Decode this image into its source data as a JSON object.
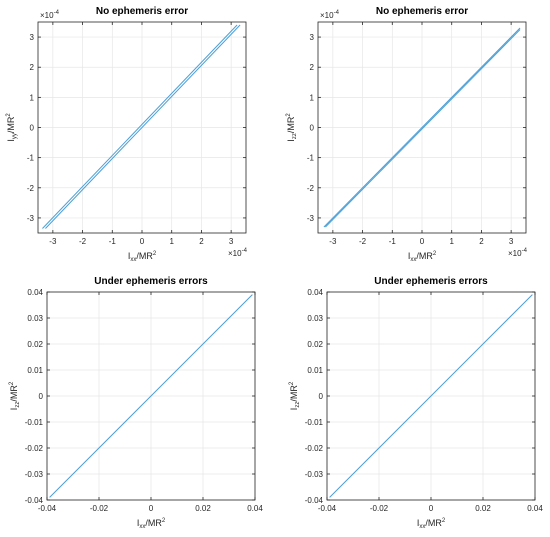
{
  "chart_data": [
    {
      "type": "line",
      "title": "No ephemeris error",
      "xlabel": {
        "base": "I",
        "sub": "xx",
        "mid": "/MR",
        "sup": "2"
      },
      "ylabel": {
        "base": "I",
        "sub": "yy",
        "mid": "/MR",
        "sup": "2"
      },
      "xlim": [
        -3.5,
        3.5
      ],
      "ylim": [
        -3.5,
        3.5
      ],
      "xticks": [
        -3,
        -2,
        -1,
        0,
        1,
        2,
        3
      ],
      "yticks": [
        -3,
        -2,
        -1,
        0,
        1,
        2,
        3
      ],
      "xtick_labels": [
        "-3",
        "-2",
        "-1",
        "0",
        "1",
        "2",
        "3"
      ],
      "ytick_labels": [
        "-3",
        "-2",
        "-1",
        "0",
        "1",
        "2",
        "3"
      ],
      "x_exponent": "×10",
      "x_exponent_power": "-4",
      "y_exponent": "×10",
      "y_exponent_power": "-4",
      "grid": true,
      "series": [
        {
          "x": [
            -3.25,
            3.3
          ],
          "y": [
            -3.35,
            3.4
          ]
        },
        {
          "x": [
            -3.35,
            3.2
          ],
          "y": [
            -3.35,
            3.4
          ]
        }
      ],
      "colors": {
        "line": "#4d9fd6"
      }
    },
    {
      "type": "line",
      "title": "No ephemeris error",
      "xlabel": {
        "base": "I",
        "sub": "xx",
        "mid": "/MR",
        "sup": "2"
      },
      "ylabel": {
        "base": "I",
        "sub": "zz",
        "mid": "/MR",
        "sup": "2"
      },
      "xlim": [
        -3.5,
        3.5
      ],
      "ylim": [
        -3.5,
        3.5
      ],
      "xticks": [
        -3,
        -2,
        -1,
        0,
        1,
        2,
        3
      ],
      "yticks": [
        -3,
        -2,
        -1,
        0,
        1,
        2,
        3
      ],
      "xtick_labels": [
        "-3",
        "-2",
        "-1",
        "0",
        "1",
        "2",
        "3"
      ],
      "ytick_labels": [
        "-3",
        "-2",
        "-1",
        "0",
        "1",
        "2",
        "3"
      ],
      "x_exponent": "×10",
      "x_exponent_power": "-4",
      "y_exponent": "×10",
      "y_exponent_power": "-4",
      "grid": true,
      "series": [
        {
          "x": [
            -3.3,
            3.3
          ],
          "y": [
            -3.3,
            3.3
          ]
        },
        {
          "x": [
            -3.25,
            3.3
          ],
          "y": [
            -3.3,
            3.25
          ]
        }
      ],
      "colors": {
        "line": "#4d9fd6"
      }
    },
    {
      "type": "line",
      "title": "Under ephemeris errors",
      "xlabel": {
        "base": "I",
        "sub": "xx",
        "mid": "/MR",
        "sup": "2"
      },
      "ylabel": {
        "base": "I",
        "sub": "zz",
        "mid": "/MR",
        "sup": "2"
      },
      "xlim": [
        -0.04,
        0.04
      ],
      "ylim": [
        -0.04,
        0.04
      ],
      "xticks": [
        -0.04,
        -0.02,
        0,
        0.02,
        0.04
      ],
      "yticks": [
        -0.04,
        -0.03,
        -0.02,
        -0.01,
        0,
        0.01,
        0.02,
        0.03,
        0.04
      ],
      "xtick_labels": [
        "-0.04",
        "-0.02",
        "0",
        "0.02",
        "0.04"
      ],
      "ytick_labels": [
        "-0.04",
        "-0.03",
        "-0.02",
        "-0.01",
        "0",
        "0.01",
        "0.02",
        "0.03",
        "0.04"
      ],
      "grid": true,
      "series": [
        {
          "x": [
            -0.039,
            0.039
          ],
          "y": [
            -0.039,
            0.039
          ]
        }
      ],
      "colors": {
        "line": "#4d9fd6"
      }
    },
    {
      "type": "line",
      "title": "Under ephemeris errors",
      "xlabel": {
        "base": "I",
        "sub": "xx",
        "mid": "/MR",
        "sup": "2"
      },
      "ylabel": {
        "base": "I",
        "sub": "zz",
        "mid": "/MR",
        "sup": "2"
      },
      "xlim": [
        -0.04,
        0.04
      ],
      "ylim": [
        -0.04,
        0.04
      ],
      "xticks": [
        -0.04,
        -0.02,
        0,
        0.02,
        0.04
      ],
      "yticks": [
        -0.04,
        -0.03,
        -0.02,
        -0.01,
        0,
        0.01,
        0.02,
        0.03,
        0.04
      ],
      "xtick_labels": [
        "-0.04",
        "-0.02",
        "0",
        "0.02",
        "0.04"
      ],
      "ytick_labels": [
        "-0.04",
        "-0.03",
        "-0.02",
        "-0.01",
        "0",
        "0.01",
        "0.02",
        "0.03",
        "0.04"
      ],
      "grid": true,
      "series": [
        {
          "x": [
            -0.039,
            0.039
          ],
          "y": [
            -0.039,
            0.039
          ]
        }
      ],
      "colors": {
        "line": "#4d9fd6"
      }
    }
  ]
}
